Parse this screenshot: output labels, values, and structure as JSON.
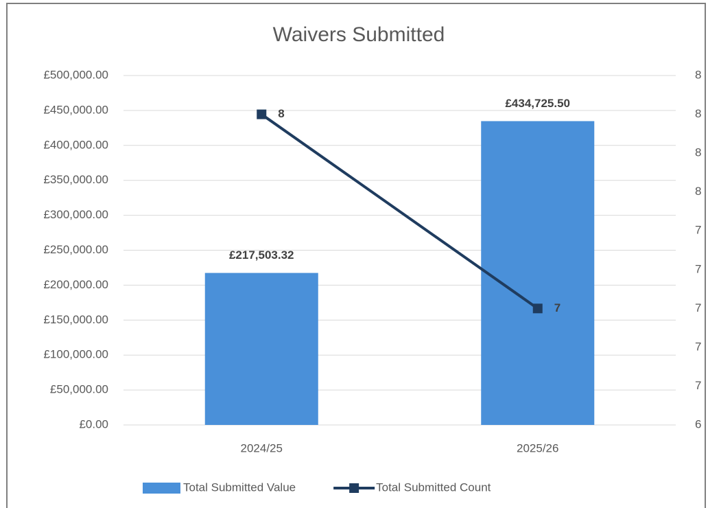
{
  "chart_data": {
    "type": "bar",
    "title": "Waivers Submitted",
    "categories": [
      "2024/25",
      "2025/26"
    ],
    "series": [
      {
        "name": "Total Submitted Value",
        "type": "bar",
        "color": "#4a90d9",
        "values": [
          217503.32,
          434725.5
        ],
        "value_labels": [
          "£217,503.32",
          "£434,725.50"
        ]
      },
      {
        "name": "Total Submitted Count",
        "type": "line",
        "axis": "y2",
        "color": "#1f3c5f",
        "values": [
          8,
          7
        ]
      }
    ],
    "ylim": [
      0,
      500000
    ],
    "yticks": [
      {
        "value": 0,
        "label": "£0.00"
      },
      {
        "value": 50000,
        "label": "£50,000.00"
      },
      {
        "value": 100000,
        "label": "£100,000.00"
      },
      {
        "value": 150000,
        "label": "£150,000.00"
      },
      {
        "value": 200000,
        "label": "£200,000.00"
      },
      {
        "value": 250000,
        "label": "£250,000.00"
      },
      {
        "value": 300000,
        "label": "£300,000.00"
      },
      {
        "value": 350000,
        "label": "£350,000.00"
      },
      {
        "value": 400000,
        "label": "£400,000.00"
      },
      {
        "value": 450000,
        "label": "£450,000.00"
      },
      {
        "value": 500000,
        "label": "£500,000.00"
      }
    ],
    "y2lim": [
      6.4,
      8.2
    ],
    "y2ticks": [
      {
        "value": 6.4,
        "label": "6"
      },
      {
        "value": 6.6,
        "label": "7"
      },
      {
        "value": 6.8,
        "label": "7"
      },
      7,
      {
        "value": 7.2,
        "label": "7"
      },
      {
        "value": 7.4,
        "label": "7"
      },
      {
        "value": 7.6,
        "label": "8"
      },
      {
        "value": 7.8,
        "label": "8"
      },
      8,
      {
        "value": 8.2,
        "label": "8"
      }
    ],
    "grid": true,
    "legend": "bottom"
  }
}
